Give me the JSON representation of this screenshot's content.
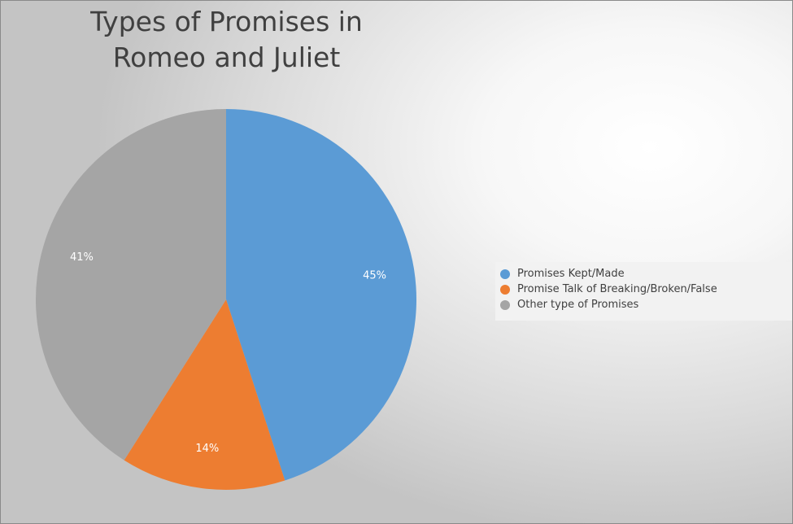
{
  "chart_data": {
    "type": "pie",
    "title_lines": [
      "Types of Promises in",
      "Romeo and Juliet"
    ],
    "categories": [
      "Promises Kept/Made",
      "Promise Talk of Breaking/Broken/False",
      "Other type of Promises"
    ],
    "values": [
      45,
      14,
      41
    ],
    "data_labels": [
      "45%",
      "14%",
      "41%"
    ],
    "colors": [
      "#5b9bd5",
      "#ed7d31",
      "#a5a5a5"
    ],
    "legend_position": "right"
  }
}
